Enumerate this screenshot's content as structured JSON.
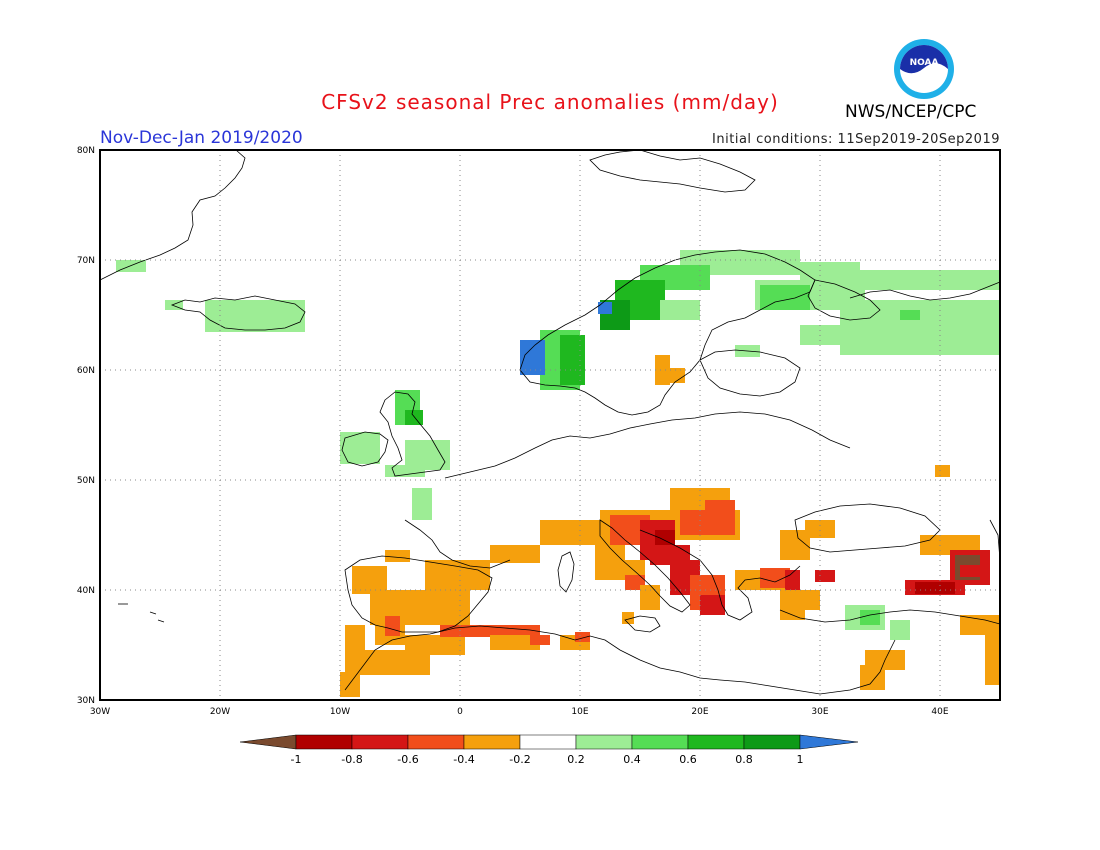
{
  "title": "CFSv2 seasonal Prec anomalies (mm/day)",
  "season": "Nov-Dec-Jan 2019/2020",
  "initial_conditions": "Initial conditions: 11Sep2019-20Sep2019",
  "agency": "NWS/NCEP/CPC",
  "logo_text": "NOAA",
  "map": {
    "lat_labels": [
      "80N",
      "70N",
      "60N",
      "50N",
      "40N",
      "30N"
    ],
    "lon_labels": [
      "30W",
      "20W",
      "10W",
      "0",
      "10E",
      "20E",
      "30E",
      "40E"
    ],
    "grid": true
  },
  "colorbar": {
    "tick_labels": [
      "-1",
      "-0.8",
      "-0.6",
      "-0.4",
      "-0.2",
      "0.2",
      "0.4",
      "0.6",
      "0.8",
      "1"
    ],
    "colors": {
      "lt_-1": "#7a4a2e",
      "-1_-0.8": "#b00000",
      "-0.8_-0.6": "#d41616",
      "-0.6_-0.4": "#f24e1b",
      "-0.4_-0.2": "#f5a00d",
      "-0.2_0.2": "#ffffff",
      "0.2_0.4": "#9ded95",
      "0.4_0.6": "#55dd55",
      "0.6_0.8": "#1fb81f",
      "0.8_1": "#0d9a17",
      "gt_1": "#2f78d8"
    }
  }
}
